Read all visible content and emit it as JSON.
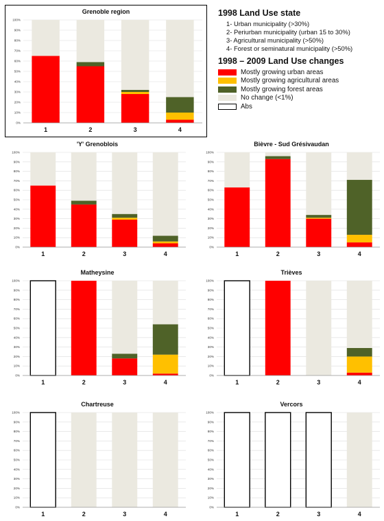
{
  "legend": {
    "state_title": "1998 Land Use state",
    "state_items": [
      "1- Urban municipality (>30%)",
      "2- Periurban municipality (urban 15 to 30%)",
      "3- Agricultural municipality (>50%)",
      "4- Forest or seminatural municipality (>50%)"
    ],
    "changes_title": "1998 – 2009 Land Use changes",
    "changes": [
      {
        "label": "Mostly growing urban areas",
        "color": "#ff0000"
      },
      {
        "label": "Mostly growing agricultural areas",
        "color": "#ffc000"
      },
      {
        "label": "Mostly growing forest areas",
        "color": "#4f6228"
      },
      {
        "label": "No change (<1%)",
        "color": "#ebe9e0"
      },
      {
        "label": "Abs",
        "color": "#ffffff"
      }
    ]
  },
  "chart_data": [
    {
      "type": "bar",
      "title": "Grenoble region",
      "categories": [
        "1",
        "2",
        "3",
        "4"
      ],
      "yticks": [
        "0%",
        "10%",
        "20%",
        "30%",
        "40%",
        "50%",
        "60%",
        "70%",
        "80%",
        "90%",
        "100%"
      ],
      "ylim": [
        0,
        100
      ],
      "stacked": true,
      "absent": [
        false,
        false,
        false,
        false
      ],
      "series": [
        {
          "name": "Mostly growing urban areas",
          "values": [
            65,
            55,
            28,
            3
          ]
        },
        {
          "name": "Mostly growing agricultural areas",
          "values": [
            0,
            0,
            2,
            7
          ]
        },
        {
          "name": "Mostly growing forest areas",
          "values": [
            0,
            4,
            2,
            15
          ]
        },
        {
          "name": "No change (<1%)",
          "values": [
            35,
            41,
            68,
            75
          ]
        }
      ]
    },
    {
      "type": "bar",
      "title": "'Y' Grenoblois",
      "categories": [
        "1",
        "2",
        "3",
        "4"
      ],
      "yticks": [
        "0%",
        "10%",
        "20%",
        "30%",
        "40%",
        "50%",
        "60%",
        "70%",
        "80%",
        "90%",
        "100%"
      ],
      "ylim": [
        0,
        100
      ],
      "stacked": true,
      "absent": [
        false,
        false,
        false,
        false
      ],
      "series": [
        {
          "name": "Mostly growing urban areas",
          "values": [
            65,
            45,
            29,
            4
          ]
        },
        {
          "name": "Mostly growing agricultural areas",
          "values": [
            0,
            0,
            2,
            2
          ]
        },
        {
          "name": "Mostly growing forest areas",
          "values": [
            0,
            4,
            4,
            6
          ]
        },
        {
          "name": "No change (<1%)",
          "values": [
            35,
            51,
            65,
            88
          ]
        }
      ]
    },
    {
      "type": "bar",
      "title": "Bièvre - Sud Grésivaudan",
      "categories": [
        "1",
        "2",
        "3",
        "4"
      ],
      "yticks": [
        "0%",
        "10%",
        "20%",
        "30%",
        "40%",
        "50%",
        "60%",
        "70%",
        "80%",
        "90%",
        "100%"
      ],
      "ylim": [
        0,
        100
      ],
      "stacked": true,
      "absent": [
        false,
        false,
        false,
        false
      ],
      "series": [
        {
          "name": "Mostly growing urban areas",
          "values": [
            63,
            93,
            30,
            5
          ]
        },
        {
          "name": "Mostly growing agricultural areas",
          "values": [
            0,
            0,
            1,
            8
          ]
        },
        {
          "name": "Mostly growing forest areas",
          "values": [
            0,
            3,
            3,
            58
          ]
        },
        {
          "name": "No change (<1%)",
          "values": [
            37,
            4,
            66,
            29
          ]
        }
      ]
    },
    {
      "type": "bar",
      "title": "Matheysine",
      "categories": [
        "1",
        "2",
        "3",
        "4"
      ],
      "yticks": [
        "0%",
        "10%",
        "20%",
        "30%",
        "40%",
        "50%",
        "60%",
        "70%",
        "80%",
        "90%",
        "100%"
      ],
      "ylim": [
        0,
        100
      ],
      "stacked": true,
      "absent": [
        true,
        false,
        false,
        false
      ],
      "series": [
        {
          "name": "Mostly growing urban areas",
          "values": [
            0,
            100,
            18,
            2
          ]
        },
        {
          "name": "Mostly growing agricultural areas",
          "values": [
            0,
            0,
            0,
            20
          ]
        },
        {
          "name": "Mostly growing forest areas",
          "values": [
            0,
            0,
            5,
            32
          ]
        },
        {
          "name": "No change (<1%)",
          "values": [
            0,
            0,
            77,
            46
          ]
        }
      ]
    },
    {
      "type": "bar",
      "title": "Trièves",
      "categories": [
        "1",
        "2",
        "3",
        "4"
      ],
      "yticks": [
        "0%",
        "10%",
        "20%",
        "30%",
        "40%",
        "50%",
        "60%",
        "70%",
        "80%",
        "90%",
        "100%"
      ],
      "ylim": [
        0,
        100
      ],
      "stacked": true,
      "absent": [
        true,
        false,
        false,
        false
      ],
      "series": [
        {
          "name": "Mostly growing urban areas",
          "values": [
            0,
            100,
            0,
            3
          ]
        },
        {
          "name": "Mostly growing agricultural areas",
          "values": [
            0,
            0,
            0,
            17
          ]
        },
        {
          "name": "Mostly growing forest areas",
          "values": [
            0,
            0,
            0,
            9
          ]
        },
        {
          "name": "No change (<1%)",
          "values": [
            0,
            0,
            100,
            71
          ]
        }
      ]
    },
    {
      "type": "bar",
      "title": "Chartreuse",
      "categories": [
        "1",
        "2",
        "3",
        "4"
      ],
      "yticks": [
        "0%",
        "10%",
        "20%",
        "30%",
        "40%",
        "50%",
        "60%",
        "70%",
        "80%",
        "90%",
        "100%"
      ],
      "ylim": [
        0,
        100
      ],
      "stacked": true,
      "absent": [
        true,
        false,
        false,
        false
      ],
      "series": [
        {
          "name": "Mostly growing urban areas",
          "values": [
            0,
            0,
            0,
            0
          ]
        },
        {
          "name": "Mostly growing agricultural areas",
          "values": [
            0,
            0,
            0,
            0
          ]
        },
        {
          "name": "Mostly growing forest areas",
          "values": [
            0,
            0,
            0,
            0
          ]
        },
        {
          "name": "No change (<1%)",
          "values": [
            0,
            100,
            100,
            100
          ]
        }
      ]
    },
    {
      "type": "bar",
      "title": "Vercors",
      "categories": [
        "1",
        "2",
        "3",
        "4"
      ],
      "yticks": [
        "0%",
        "10%",
        "20%",
        "30%",
        "40%",
        "50%",
        "60%",
        "70%",
        "80%",
        "90%",
        "100%"
      ],
      "ylim": [
        0,
        100
      ],
      "stacked": true,
      "absent": [
        true,
        true,
        true,
        false
      ],
      "series": [
        {
          "name": "Mostly growing urban areas",
          "values": [
            0,
            0,
            0,
            0
          ]
        },
        {
          "name": "Mostly growing agricultural areas",
          "values": [
            0,
            0,
            0,
            0
          ]
        },
        {
          "name": "Mostly growing forest areas",
          "values": [
            0,
            0,
            0,
            0
          ]
        },
        {
          "name": "No change (<1%)",
          "values": [
            0,
            0,
            0,
            100
          ]
        }
      ]
    }
  ]
}
